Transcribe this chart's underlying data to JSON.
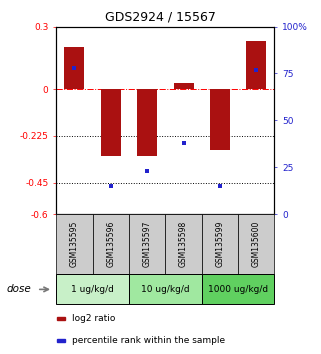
{
  "title": "GDS2924 / 15567",
  "samples": [
    "GSM135595",
    "GSM135596",
    "GSM135597",
    "GSM135598",
    "GSM135599",
    "GSM135600"
  ],
  "log2_ratio": [
    0.2,
    -0.32,
    -0.32,
    0.03,
    -0.29,
    0.23
  ],
  "percentile_rank": [
    78,
    15,
    23,
    38,
    15,
    77
  ],
  "ylim_left": [
    -0.6,
    0.3
  ],
  "ylim_right": [
    0,
    100
  ],
  "yticks_left": [
    0.3,
    0,
    -0.225,
    -0.45,
    -0.6
  ],
  "yticks_right": [
    100,
    75,
    50,
    25,
    0
  ],
  "hlines": [
    0,
    -0.225,
    -0.45
  ],
  "hline_styles": [
    "dashdot",
    "dotted",
    "dotted"
  ],
  "hline_colors": [
    "red",
    "black",
    "black"
  ],
  "dose_groups": [
    {
      "label": "1 ug/kg/d",
      "indices": [
        0,
        1
      ],
      "color": "#c8f0c8"
    },
    {
      "label": "10 ug/kg/d",
      "indices": [
        2,
        3
      ],
      "color": "#a0e8a0"
    },
    {
      "label": "1000 ug/kg/d",
      "indices": [
        4,
        5
      ],
      "color": "#60d060"
    }
  ],
  "bar_color": "#aa1111",
  "dot_color": "#2222cc",
  "sample_box_color": "#cccccc",
  "legend_red_label": "log2 ratio",
  "legend_blue_label": "percentile rank within the sample",
  "dose_label": "dose",
  "bar_width": 0.55
}
